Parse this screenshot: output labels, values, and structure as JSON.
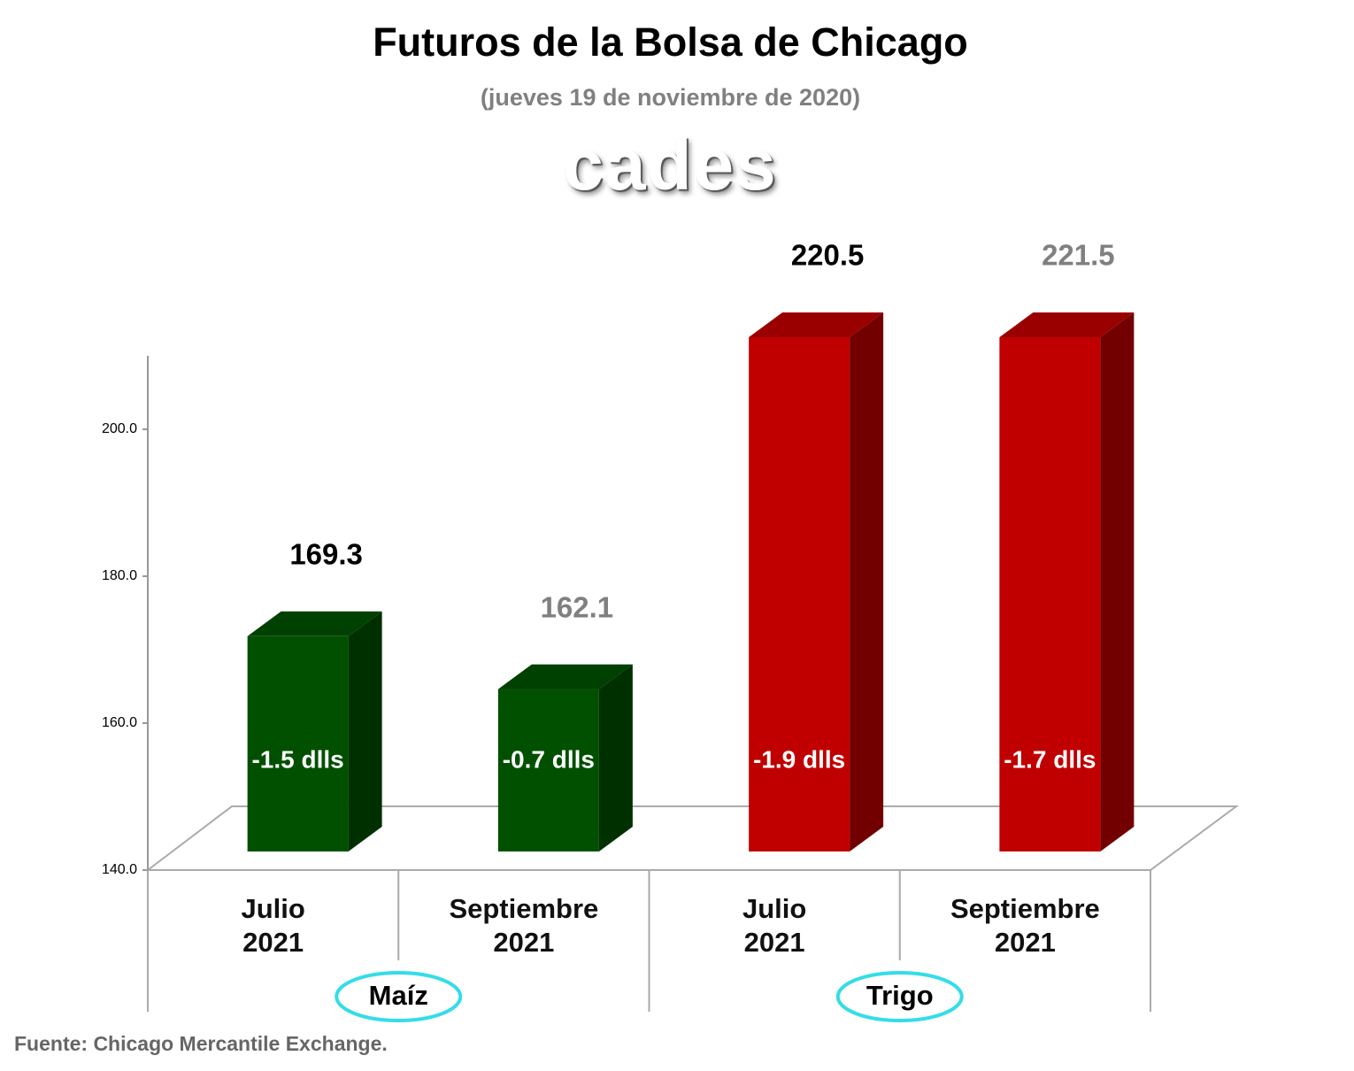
{
  "chart_data": {
    "type": "bar3d",
    "title": "Futuros de la Bolsa de Chicago",
    "subtitle": "(jueves 19 de noviembre de 2020)",
    "logo": "cades",
    "source": "Fuente: Chicago Mercantile Exchange.",
    "categories": [
      "Julio\n2021",
      "Septiembre\n2021",
      "Julio\n2021",
      "Septiembre\n2021"
    ],
    "groups": [
      {
        "name": "Maíz",
        "span": [
          0,
          1
        ]
      },
      {
        "name": "Trigo",
        "span": [
          2,
          3
        ]
      }
    ],
    "values": [
      169.3,
      162.1,
      220.5,
      221.5
    ],
    "value_labels": [
      "169.3",
      "162.1",
      "220.5",
      "221.5"
    ],
    "value_label_colors": [
      "#000000",
      "#808080",
      "#000000",
      "#808080"
    ],
    "changes": [
      "-1.5 dlls",
      "-0.7 dlls",
      "-1.9 dlls",
      "-1.7 dlls"
    ],
    "colors": [
      "#005000",
      "#005000",
      "#c00000",
      "#c00000"
    ],
    "ylim": [
      140,
      210
    ],
    "yticks": [
      {
        "value": 140,
        "label": "140.0"
      },
      {
        "value": 160,
        "label": "160.0"
      },
      {
        "value": 180,
        "label": "180.0"
      },
      {
        "value": 200,
        "label": "200.0"
      }
    ]
  }
}
